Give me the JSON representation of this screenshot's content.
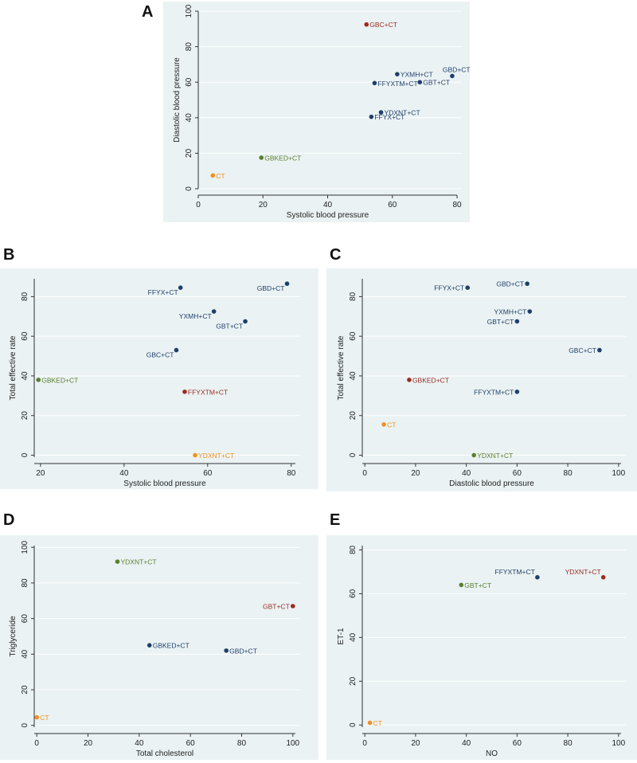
{
  "colors": {
    "blue": "#1f3f6b",
    "red": "#9b2b22",
    "green": "#5a7f2e",
    "orange": "#f09020",
    "panel_bg": "#eaf2f3",
    "grid": "#ffffff",
    "axis": "#333333"
  },
  "chart_data": [
    {
      "id": "A",
      "letter": "A",
      "type": "scatter",
      "title": "",
      "xlabel": "Systolic blood pressure",
      "ylabel": "Diastolic blood pressure",
      "xlim": [
        0,
        80
      ],
      "ylim": [
        0,
        100
      ],
      "xticks": [
        0,
        20,
        40,
        60,
        80
      ],
      "yticks": [
        0,
        20,
        40,
        60,
        80,
        100
      ],
      "points": [
        {
          "label": "GBC+CT",
          "x": 52,
          "y": 92.5,
          "color": "red",
          "pos": "right"
        },
        {
          "label": "YXMH+CT",
          "x": 61.5,
          "y": 64.5,
          "color": "blue",
          "pos": "right"
        },
        {
          "label": "GBD+CT",
          "x": 78.5,
          "y": 63.5,
          "color": "blue",
          "pos": "upper-right"
        },
        {
          "label": "FFYXTM+CT",
          "x": 54.5,
          "y": 59.5,
          "color": "blue",
          "pos": "right"
        },
        {
          "label": "GBT+CT",
          "x": 68.5,
          "y": 60,
          "color": "blue",
          "pos": "right"
        },
        {
          "label": "YDXNT+CT",
          "x": 56.5,
          "y": 43,
          "color": "blue",
          "pos": "right"
        },
        {
          "label": "FFYX+CT",
          "x": 53.5,
          "y": 40.5,
          "color": "blue",
          "pos": "right"
        },
        {
          "label": "GBKED+CT",
          "x": 19.5,
          "y": 17.5,
          "color": "green",
          "pos": "right"
        },
        {
          "label": "CT",
          "x": 4.5,
          "y": 7.5,
          "color": "orange",
          "pos": "right"
        }
      ]
    },
    {
      "id": "B",
      "letter": "B",
      "type": "scatter",
      "title": "",
      "xlabel": "Systolic blood pressure",
      "ylabel": "Total effective rate",
      "xlim": [
        18.5,
        81
      ],
      "ylim": [
        -1,
        89
      ],
      "xticks": [
        20,
        40,
        60,
        80
      ],
      "yticks": [
        0,
        20,
        40,
        60,
        80
      ],
      "points": [
        {
          "label": "GBD+CT",
          "x": 79,
          "y": 86.5,
          "color": "blue",
          "pos": "lower-left"
        },
        {
          "label": "FFYX+CT",
          "x": 53.5,
          "y": 84.5,
          "color": "blue",
          "pos": "lower-left"
        },
        {
          "label": "YXMH+CT",
          "x": 61.5,
          "y": 72.5,
          "color": "blue",
          "pos": "lower-left"
        },
        {
          "label": "GBT+CT",
          "x": 69,
          "y": 67.5,
          "color": "blue",
          "pos": "lower-left"
        },
        {
          "label": "GBC+CT",
          "x": 52.5,
          "y": 53,
          "color": "blue",
          "pos": "lower-left"
        },
        {
          "label": "GBKED+CT",
          "x": 19.5,
          "y": 38,
          "color": "green",
          "pos": "right"
        },
        {
          "label": "FFYXTM+CT",
          "x": 54.5,
          "y": 32,
          "color": "red",
          "pos": "right"
        },
        {
          "label": "YDXNT+CT",
          "x": 57,
          "y": 0,
          "color": "orange",
          "pos": "right"
        }
      ]
    },
    {
      "id": "C",
      "letter": "C",
      "type": "scatter",
      "title": "",
      "xlabel": "Diastolic blood pressure",
      "ylabel": "Total effective rate",
      "xlim": [
        -1,
        101
      ],
      "ylim": [
        -1,
        89
      ],
      "xticks": [
        0,
        20,
        40,
        60,
        80,
        100
      ],
      "yticks": [
        0,
        20,
        40,
        60,
        80
      ],
      "points": [
        {
          "label": "GBD+CT",
          "x": 64,
          "y": 86.5,
          "color": "blue",
          "pos": "left"
        },
        {
          "label": "FFYX+CT",
          "x": 40.5,
          "y": 84.5,
          "color": "blue",
          "pos": "left"
        },
        {
          "label": "YXMH+CT",
          "x": 65,
          "y": 72.5,
          "color": "blue",
          "pos": "left"
        },
        {
          "label": "GBT+CT",
          "x": 60,
          "y": 67.5,
          "color": "blue",
          "pos": "left"
        },
        {
          "label": "GBC+CT",
          "x": 92.5,
          "y": 53,
          "color": "blue",
          "pos": "left"
        },
        {
          "label": "GBKED+CT",
          "x": 17.5,
          "y": 38,
          "color": "red",
          "pos": "right"
        },
        {
          "label": "FFYXTM+CT",
          "x": 60,
          "y": 32,
          "color": "blue",
          "pos": "left"
        },
        {
          "label": "CT",
          "x": 7.5,
          "y": 15.5,
          "color": "orange",
          "pos": "right"
        },
        {
          "label": "YDXNT+CT",
          "x": 43,
          "y": 0,
          "color": "green",
          "pos": "right"
        }
      ]
    },
    {
      "id": "D",
      "letter": "D",
      "type": "scatter",
      "title": "",
      "xlabel": "Total cholesterol",
      "ylabel": "Triglyceride",
      "xlim": [
        -1,
        101
      ],
      "ylim": [
        -1,
        101
      ],
      "xticks": [
        0,
        20,
        40,
        60,
        80,
        100
      ],
      "yticks": [
        0,
        20,
        40,
        60,
        80,
        100
      ],
      "points": [
        {
          "label": "YDXNT+CT",
          "x": 31.5,
          "y": 92,
          "color": "green",
          "pos": "right"
        },
        {
          "label": "GBT+CT",
          "x": 100,
          "y": 67,
          "color": "red",
          "pos": "left"
        },
        {
          "label": "GBKED+CT",
          "x": 44,
          "y": 45,
          "color": "blue",
          "pos": "right"
        },
        {
          "label": "GBD+CT",
          "x": 74,
          "y": 42,
          "color": "blue",
          "pos": "right"
        },
        {
          "label": "CT",
          "x": 0,
          "y": 4.5,
          "color": "orange",
          "pos": "right"
        }
      ]
    },
    {
      "id": "E",
      "letter": "E",
      "type": "scatter",
      "title": "",
      "xlabel": "NO",
      "ylabel": "ET-1",
      "xlim": [
        -1,
        101
      ],
      "ylim": [
        -1,
        82
      ],
      "xticks": [
        0,
        20,
        40,
        60,
        80,
        100
      ],
      "yticks": [
        0,
        20,
        40,
        60,
        80
      ],
      "points": [
        {
          "label": "FFYXTM+CT",
          "x": 68,
          "y": 67.5,
          "color": "blue",
          "pos": "upper-left"
        },
        {
          "label": "YDXNT+CT",
          "x": 94,
          "y": 67.5,
          "color": "red",
          "pos": "upper-left"
        },
        {
          "label": "GBT+CT",
          "x": 38,
          "y": 64,
          "color": "green",
          "pos": "right"
        },
        {
          "label": "CT",
          "x": 2,
          "y": 1,
          "color": "orange",
          "pos": "right"
        }
      ]
    }
  ]
}
